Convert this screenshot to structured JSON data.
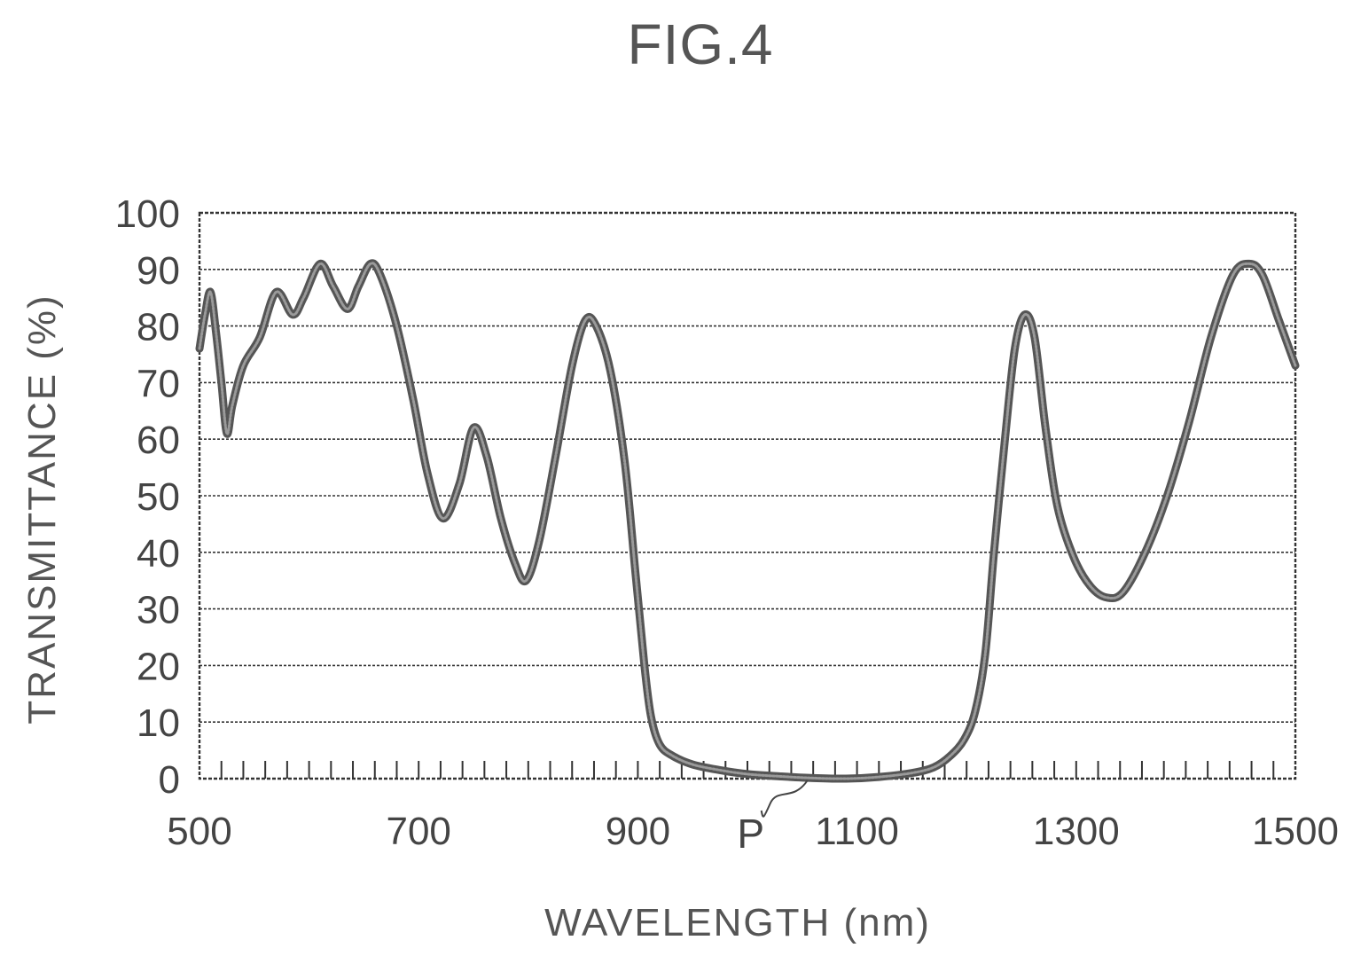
{
  "figure": {
    "title": "FIG.4"
  },
  "chart_data": {
    "type": "line",
    "xlabel": "WAVELENGTH (nm)",
    "ylabel": "TRANSMITTANCE (%)",
    "xlim": [
      500,
      1500
    ],
    "ylim": [
      0,
      100
    ],
    "x_ticks": [
      500,
      700,
      900,
      1100,
      1300,
      1500
    ],
    "x_minor_step": 20,
    "y_ticks": [
      0,
      10,
      20,
      30,
      40,
      50,
      60,
      70,
      80,
      90,
      100
    ],
    "grid": true,
    "legend": "none",
    "series": [
      {
        "color": "#555555",
        "points": [
          [
            500,
            76
          ],
          [
            505,
            82
          ],
          [
            510,
            86
          ],
          [
            515,
            79
          ],
          [
            520,
            70
          ],
          [
            525,
            61
          ],
          [
            530,
            66
          ],
          [
            540,
            73
          ],
          [
            555,
            78
          ],
          [
            570,
            86
          ],
          [
            585,
            82
          ],
          [
            595,
            85
          ],
          [
            610,
            91
          ],
          [
            622,
            87
          ],
          [
            635,
            83
          ],
          [
            645,
            87
          ],
          [
            656,
            91
          ],
          [
            665,
            89
          ],
          [
            680,
            80
          ],
          [
            695,
            67
          ],
          [
            708,
            54
          ],
          [
            722,
            46
          ],
          [
            737,
            52
          ],
          [
            750,
            62
          ],
          [
            762,
            57
          ],
          [
            775,
            46
          ],
          [
            788,
            38
          ],
          [
            798,
            35
          ],
          [
            810,
            42
          ],
          [
            825,
            57
          ],
          [
            840,
            73
          ],
          [
            852,
            81
          ],
          [
            862,
            80
          ],
          [
            875,
            72
          ],
          [
            888,
            56
          ],
          [
            898,
            36
          ],
          [
            906,
            20
          ],
          [
            912,
            11
          ],
          [
            920,
            6
          ],
          [
            932,
            4
          ],
          [
            950,
            2.5
          ],
          [
            975,
            1.5
          ],
          [
            1000,
            0.8
          ],
          [
            1030,
            0.4
          ],
          [
            1060,
            0.1
          ],
          [
            1090,
            0
          ],
          [
            1120,
            0.3
          ],
          [
            1150,
            1
          ],
          [
            1170,
            2
          ],
          [
            1185,
            4
          ],
          [
            1198,
            7
          ],
          [
            1208,
            12
          ],
          [
            1217,
            22
          ],
          [
            1225,
            40
          ],
          [
            1235,
            60
          ],
          [
            1244,
            76
          ],
          [
            1253,
            82
          ],
          [
            1262,
            78
          ],
          [
            1272,
            62
          ],
          [
            1283,
            48
          ],
          [
            1298,
            39
          ],
          [
            1313,
            34
          ],
          [
            1328,
            32
          ],
          [
            1343,
            33
          ],
          [
            1363,
            40
          ],
          [
            1383,
            50
          ],
          [
            1403,
            63
          ],
          [
            1423,
            78
          ],
          [
            1443,
            89
          ],
          [
            1458,
            91
          ],
          [
            1470,
            89
          ],
          [
            1485,
            81
          ],
          [
            1500,
            73
          ]
        ]
      }
    ],
    "annotations": [
      {
        "text": "P",
        "x": 1058,
        "y": 0
      }
    ]
  }
}
